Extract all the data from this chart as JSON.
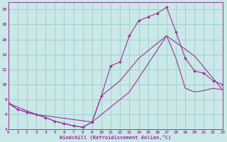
{
  "bg_color": "#cbe8e8",
  "line_color": "#993399",
  "grid_color": "#99cccc",
  "xlabel": "Windchill (Refroidissement éolien,°C)",
  "xlim": [
    0,
    23
  ],
  "ylim": [
    4,
    21
  ],
  "yticks": [
    4,
    6,
    8,
    10,
    12,
    14,
    16,
    18,
    20
  ],
  "xticks": [
    0,
    1,
    2,
    3,
    4,
    5,
    6,
    7,
    8,
    9,
    10,
    11,
    12,
    13,
    14,
    15,
    16,
    17,
    18,
    19,
    20,
    21,
    22,
    23
  ],
  "line1_x": [
    0,
    1,
    2,
    3,
    4,
    5,
    6,
    7,
    8,
    9,
    10,
    11,
    12,
    13,
    14,
    15,
    16,
    17,
    18,
    19,
    20,
    21,
    22,
    23
  ],
  "line1_y": [
    7.5,
    6.7,
    6.3,
    6.0,
    5.6,
    5.1,
    4.8,
    4.5,
    4.3,
    5.0,
    8.5,
    12.5,
    13.0,
    16.5,
    18.5,
    19.0,
    19.5,
    20.3,
    17.0,
    13.5,
    11.8,
    11.5,
    10.5,
    10.0
  ],
  "line2_x": [
    0,
    1,
    2,
    3,
    4,
    5,
    6,
    7,
    8,
    9,
    10,
    11,
    12,
    13,
    14,
    15,
    16,
    17,
    18,
    19,
    20,
    21,
    22,
    23
  ],
  "line2_y": [
    7.5,
    6.7,
    6.3,
    6.0,
    5.6,
    5.1,
    4.8,
    4.5,
    4.3,
    5.0,
    8.5,
    9.5,
    10.5,
    12.0,
    13.5,
    14.5,
    15.5,
    16.5,
    13.5,
    9.5,
    9.0,
    9.2,
    9.5,
    9.3
  ],
  "line3_x": [
    0,
    3,
    9,
    13,
    17,
    20,
    23
  ],
  "line3_y": [
    7.5,
    6.0,
    5.0,
    9.0,
    16.5,
    13.8,
    9.3
  ]
}
